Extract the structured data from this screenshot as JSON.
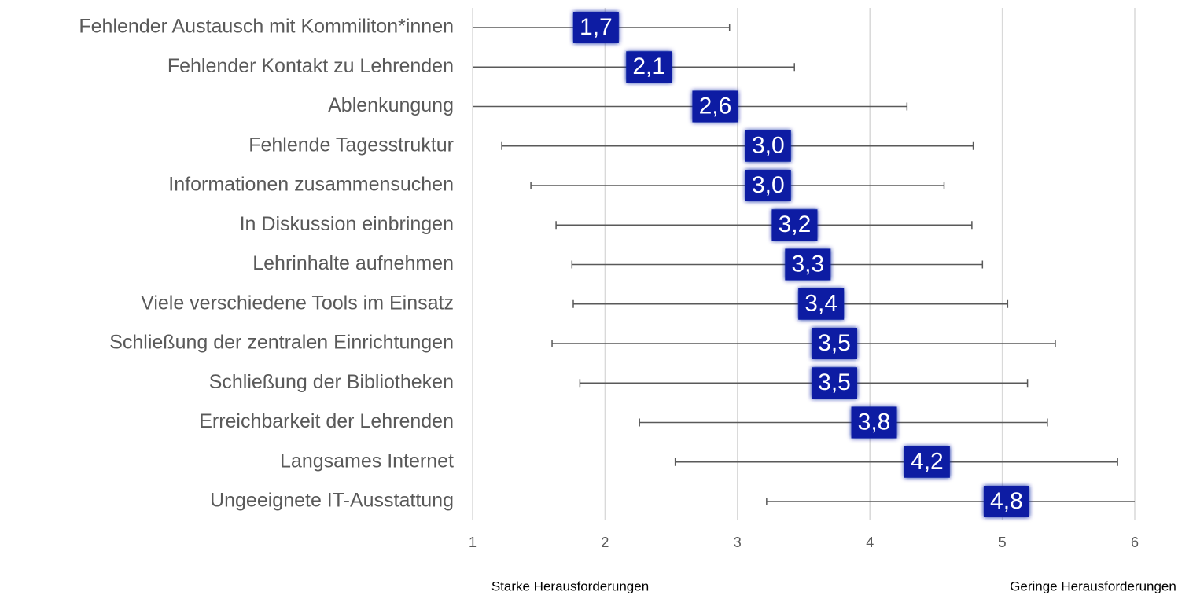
{
  "chart_data": {
    "type": "errorbar",
    "categories": [
      "Fehlender Austausch mit Kommiliton*innen",
      "Fehlender Kontakt zu Lehrenden",
      "Ablenkungung",
      "Fehlende Tagesstruktur",
      "Informationen zusammensuchen",
      "In Diskussion einbringen",
      "Lehrinhalte aufnehmen",
      "Viele verschiedene Tools im Einsatz",
      "Schließung der zentralen Einrichtungen",
      "Schließung der Bibliotheken",
      "Erreichbarkeit der Lehrenden",
      "Langsames Internet",
      "Ungeeignete IT-Ausstattung"
    ],
    "values": [
      1.7,
      2.1,
      2.6,
      3.0,
      3.0,
      3.2,
      3.3,
      3.4,
      3.5,
      3.5,
      3.8,
      4.2,
      4.8
    ],
    "value_labels": [
      "1,7",
      "2,1",
      "2,6",
      "3,0",
      "3,0",
      "3,2",
      "3,3",
      "3,4",
      "3,5",
      "3,5",
      "3,8",
      "4,2",
      "4,8"
    ],
    "errors": [
      1.24,
      1.33,
      1.68,
      1.78,
      1.56,
      1.57,
      1.55,
      1.64,
      1.9,
      1.69,
      1.54,
      1.67,
      1.58
    ],
    "color": "#0b1ea3",
    "xlim": [
      1,
      6
    ],
    "xticks": [
      1,
      2,
      3,
      4,
      5,
      6
    ],
    "grid": true,
    "annotations": [
      "Starke Herausforderungen",
      "Geringe Herausforderungen"
    ]
  }
}
